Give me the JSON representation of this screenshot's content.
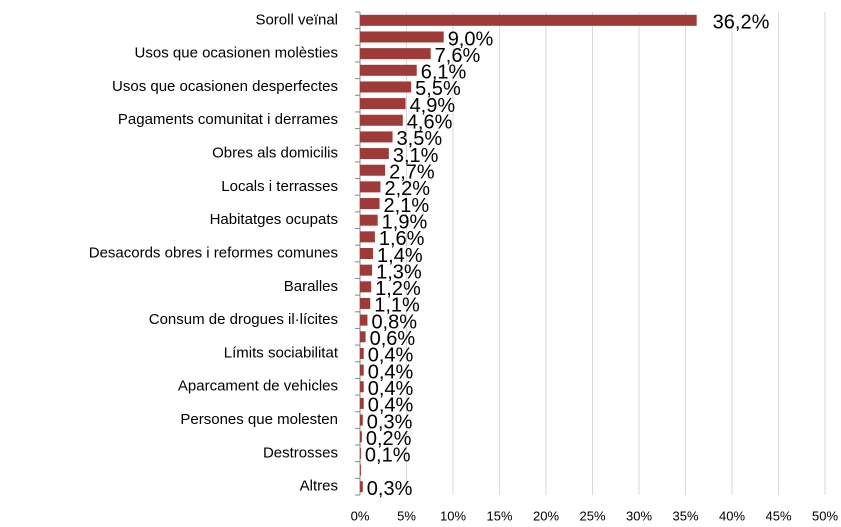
{
  "chart_data": {
    "type": "barh",
    "categories": [
      "Soroll veïnal",
      null,
      "Usos que ocasionen molèsties",
      null,
      "Usos que ocasionen desperfectes",
      null,
      "Pagaments comunitat i derrames",
      null,
      "Obres als domicilis",
      null,
      "Locals i terrasses",
      null,
      "Habitatges ocupats",
      null,
      "Desacords obres i reformes comunes",
      null,
      "Baralles",
      null,
      "Consum de drogues il·lícites",
      null,
      "Límits sociabilitat",
      null,
      "Aparcament de vehicles",
      null,
      "Persones que molesten",
      null,
      "Destrosses",
      null,
      "Altres"
    ],
    "values": [
      36.2,
      9.0,
      7.6,
      6.1,
      5.5,
      4.9,
      4.6,
      3.5,
      3.1,
      2.7,
      2.2,
      2.1,
      1.9,
      1.6,
      1.4,
      1.3,
      1.2,
      1.1,
      0.8,
      0.6,
      0.4,
      0.4,
      0.4,
      0.4,
      0.3,
      0.2,
      0.1,
      0.1,
      0.3
    ],
    "value_labels": [
      "36,2%",
      "9,0%",
      "7,6%",
      "6,1%",
      "5,5%",
      "4,9%",
      "4,6%",
      "3,5%",
      "3,1%",
      "2,7%",
      "2,2%",
      "2,1%",
      "1,9%",
      "1,6%",
      "1,4%",
      "1,3%",
      "1,2%",
      "1,1%",
      "0,8%",
      "0,6%",
      "0,4%",
      "0,4%",
      "0,4%",
      "0,4%",
      "0,3%",
      "0,2%",
      "0,1%",
      null,
      "0,3%"
    ],
    "color": "#9e3a38",
    "xlim": [
      0,
      50
    ],
    "xticks": [
      {
        "value": 0,
        "label": "0%"
      },
      {
        "value": 5,
        "label": "5%"
      },
      {
        "value": 10,
        "label": "10%"
      },
      {
        "value": 15,
        "label": "15%"
      },
      {
        "value": 20,
        "label": "20%"
      },
      {
        "value": 25,
        "label": "25%"
      },
      {
        "value": 30,
        "label": "30%"
      },
      {
        "value": 35,
        "label": "35%"
      },
      {
        "value": 40,
        "label": "40%"
      },
      {
        "value": 45,
        "label": "45%"
      },
      {
        "value": 50,
        "label": "50%"
      }
    ],
    "grid": true
  }
}
